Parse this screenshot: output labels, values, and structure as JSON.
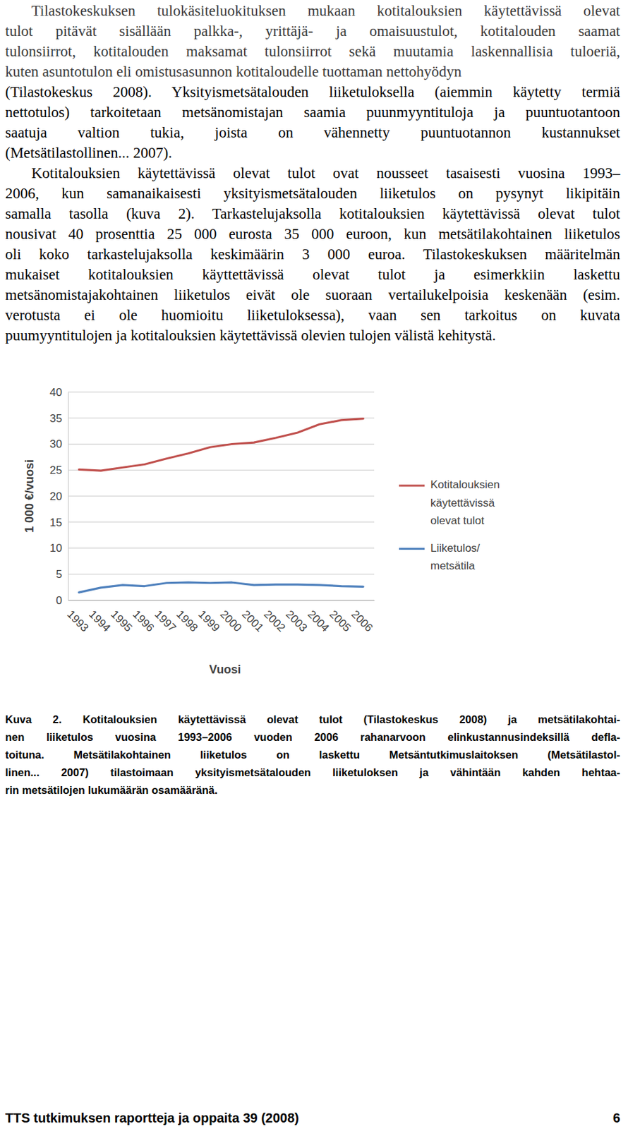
{
  "paragraphs": [
    {
      "lines": [
        "Tilastokeskuksen tulokäsiteluokituksen mukaan kotitalouksien käytettävissä olevat",
        "tulot pitävät sisällään palkka-, yrittäjä- ja omaisuustulot, kotitalouden saamat",
        "tulonsiirrot, kotitalouden maksamat tulonsiirrot sekä muutamia laskennallisia tuloeriä,",
        "kuten asuntotulon eli omistusasunnon kotitaloudelle tuottaman nettohyödyn"
      ]
    },
    {
      "lines": [
        "(Tilastokeskus 2008). Yksityismetsätalouden liiketuloksella (aiemmin käytetty termiä",
        "nettotulos) tarkoitetaan metsänomistajan saamia puunmyyntituloja ja puuntuotantoon",
        "saatuja valtion tukia, joista on vähennetty puuntuotannon kustannukset",
        "(Metsätilastollinen... 2007)."
      ]
    },
    {
      "lines": [
        "Kotitalouksien käytettävissä olevat tulot ovat nousseet tasaisesti vuosina 1993–",
        "2006, kun samanaikaisesti yksityismetsätalouden liiketulos on pysynyt likipitäin",
        "samalla tasolla (kuva 2). Tarkastelujaksolla kotitalouksien käytettävissä olevat tulot",
        "nousivat 40 prosenttia 25 000 eurosta 35 000 euroon, kun metsätilakohtainen liiketulos",
        "oli koko tarkastelujaksolla keskimäärin 3 000 euroa. Tilastokeskuksen määritelmän",
        "mukaiset kotitalouksien käyttettävissä olevat tulot ja esimerkkiin laskettu",
        "metsänomistajakohtainen liiketulos eivät ole suoraan vertailukelpoisia keskenään (esim.",
        "verotusta ei ole huomioitu liiketuloksessa), vaan sen tarkoitus on kuvata",
        "puumyyntitulojen ja kotitalouksien käytettävissä olevien tulojen välistä kehitystä."
      ]
    }
  ],
  "chart_data": {
    "type": "line",
    "ylabel": "1 000 €/vuosi",
    "xlabel": "Vuosi",
    "categories": [
      "1993",
      "1994",
      "1995",
      "1996",
      "1997",
      "1998",
      "1999",
      "2000",
      "2001",
      "2002",
      "2003",
      "2004",
      "2005",
      "2006"
    ],
    "series": [
      {
        "name": "Kotitalouksien käytettävissä olevat tulot",
        "color": "#c0504d",
        "values": [
          25.1,
          24.9,
          25.5,
          26.1,
          27.2,
          28.2,
          29.4,
          30.0,
          30.3,
          31.2,
          32.2,
          33.8,
          34.6,
          34.9
        ]
      },
      {
        "name": "Liiketulos/ metsätila",
        "color": "#4f81bd",
        "values": [
          1.5,
          2.4,
          2.9,
          2.7,
          3.3,
          3.4,
          3.3,
          3.4,
          2.9,
          3.0,
          3.0,
          2.9,
          2.7,
          2.6
        ]
      }
    ],
    "ylim": [
      0,
      40
    ],
    "yticks": [
      0,
      5,
      10,
      15,
      20,
      25,
      30,
      35,
      40
    ],
    "grid": true,
    "legend": "right"
  },
  "caption": {
    "lines": [
      "Kuva 2.  Kotitalouksien käytettävissä olevat tulot (Tilastokeskus 2008) ja metsätilakohtai-",
      "nen liiketulos vuosina 1993–2006 vuoden 2006 rahanarvoon elinkustannusindeksillä defla-",
      "toituna. Metsätilakohtainen liiketulos on laskettu Metsäntutkimuslaitoksen (Metsätilastol-",
      "linen... 2007) tilastoimaan yksityismetsätalouden liiketuloksen ja vähintään kahden hehtaa-",
      "rin metsätilojen lukumäärän osamääränä."
    ]
  },
  "footer": {
    "text": "TTS tutkimuksen raportteja ja oppaita 39 (2008)",
    "page": 6
  }
}
